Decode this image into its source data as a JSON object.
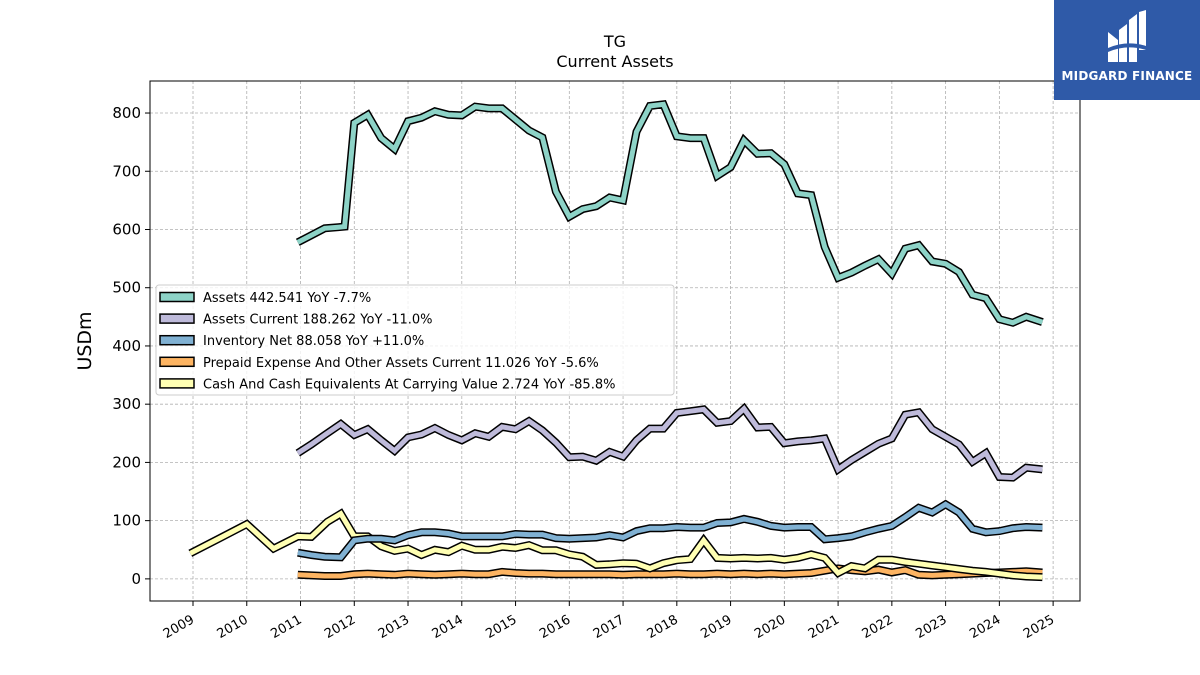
{
  "logo": {
    "brand": "MIDGARD FINANCE",
    "icon": "midgard-logo-mark",
    "color": "#2f5aa8"
  },
  "chart_data": {
    "type": "line",
    "title": "TG",
    "subtitle": "Current  Assets",
    "xlabel": "",
    "ylabel": "USDm",
    "xlim": [
      2008.2,
      2025.5
    ],
    "ylim": [
      -38,
      855
    ],
    "yticks": [
      0,
      100,
      200,
      300,
      400,
      500,
      600,
      700,
      800
    ],
    "xticks": [
      "2009",
      "2010",
      "2011",
      "2012",
      "2013",
      "2014",
      "2015",
      "2016",
      "2017",
      "2018",
      "2019",
      "2020",
      "2021",
      "2022",
      "2023",
      "2024",
      "2025"
    ],
    "grid": true,
    "legend_position": "center-left",
    "series": [
      {
        "name": "Assets  442.541 YoY -7.7%",
        "color": "#8dd3c7",
        "x": [
          2010.95,
          2011.2,
          2011.45,
          2011.7,
          2011.82,
          2012.0,
          2012.25,
          2012.5,
          2012.75,
          2013.0,
          2013.25,
          2013.5,
          2013.75,
          2014.0,
          2014.25,
          2014.5,
          2014.75,
          2015.0,
          2015.25,
          2015.5,
          2015.75,
          2016.0,
          2016.25,
          2016.5,
          2016.75,
          2017.0,
          2017.25,
          2017.5,
          2017.75,
          2018.0,
          2018.25,
          2018.5,
          2018.75,
          2019.0,
          2019.25,
          2019.5,
          2019.75,
          2020.0,
          2020.25,
          2020.5,
          2020.75,
          2021.0,
          2021.25,
          2021.5,
          2021.75,
          2022.0,
          2022.25,
          2022.5,
          2022.75,
          2023.0,
          2023.25,
          2023.5,
          2023.75,
          2024.0,
          2024.25,
          2024.5,
          2024.8
        ],
        "values": [
          578,
          590,
          602,
          604,
          605,
          783,
          797,
          757,
          738,
          786,
          792,
          803,
          797,
          796,
          811,
          808,
          808,
          789,
          770,
          758,
          665,
          622,
          635,
          640,
          655,
          650,
          768,
          812,
          815,
          760,
          757,
          757,
          692,
          707,
          753,
          730,
          731,
          712,
          662,
          659,
          570,
          517,
          526,
          538,
          549,
          524,
          567,
          573,
          545,
          541,
          527,
          488,
          482,
          446,
          440,
          450,
          441
        ]
      },
      {
        "name": "Assets Current  188.262 YoY -11.0%",
        "color": "#bebada",
        "x": [
          2010.95,
          2011.2,
          2011.45,
          2011.75,
          2012.0,
          2012.25,
          2012.5,
          2012.75,
          2013.0,
          2013.25,
          2013.5,
          2013.75,
          2014.0,
          2014.25,
          2014.5,
          2014.75,
          2015.0,
          2015.25,
          2015.5,
          2015.75,
          2016.0,
          2016.25,
          2016.5,
          2016.75,
          2017.0,
          2017.25,
          2017.5,
          2017.75,
          2018.0,
          2018.25,
          2018.5,
          2018.75,
          2019.0,
          2019.25,
          2019.5,
          2019.75,
          2020.0,
          2020.25,
          2020.5,
          2020.75,
          2021.0,
          2021.25,
          2021.5,
          2021.75,
          2022.0,
          2022.25,
          2022.5,
          2022.75,
          2023.0,
          2023.25,
          2023.5,
          2023.75,
          2024.0,
          2024.25,
          2024.5,
          2024.8
        ],
        "values": [
          216,
          231,
          247,
          266,
          247,
          257,
          238,
          220,
          243,
          248,
          259,
          247,
          238,
          250,
          244,
          261,
          257,
          271,
          255,
          234,
          209,
          210,
          203,
          218,
          210,
          238,
          258,
          258,
          285,
          288,
          291,
          268,
          271,
          292,
          260,
          261,
          233,
          236,
          238,
          241,
          188,
          204,
          218,
          232,
          241,
          282,
          286,
          257,
          244,
          231,
          201,
          216,
          175,
          174,
          191,
          188
        ]
      },
      {
        "name": "Inventory Net  88.058 YoY +11.0%",
        "color": "#80b1d3",
        "x": [
          2010.95,
          2011.2,
          2011.45,
          2011.75,
          2012.0,
          2012.25,
          2012.5,
          2012.75,
          2013.0,
          2013.25,
          2013.5,
          2013.75,
          2014.0,
          2014.25,
          2014.5,
          2014.75,
          2015.0,
          2015.25,
          2015.5,
          2015.75,
          2016.0,
          2016.25,
          2016.5,
          2016.75,
          2017.0,
          2017.25,
          2017.5,
          2017.75,
          2018.0,
          2018.25,
          2018.5,
          2018.75,
          2019.0,
          2019.25,
          2019.5,
          2019.75,
          2020.0,
          2020.25,
          2020.5,
          2020.75,
          2021.0,
          2021.25,
          2021.5,
          2021.75,
          2022.0,
          2022.25,
          2022.5,
          2022.75,
          2023.0,
          2023.25,
          2023.5,
          2023.75,
          2024.0,
          2024.25,
          2024.5,
          2024.8
        ],
        "values": [
          45,
          41,
          38,
          37,
          66,
          69,
          69,
          66,
          75,
          80,
          80,
          78,
          73,
          73,
          73,
          73,
          77,
          76,
          76,
          70,
          69,
          70,
          71,
          75,
          71,
          82,
          87,
          87,
          89,
          88,
          88,
          96,
          97,
          103,
          98,
          91,
          88,
          89,
          89,
          68,
          70,
          73,
          80,
          86,
          91,
          106,
          122,
          114,
          128,
          114,
          86,
          80,
          82,
          87,
          89,
          88
        ]
      },
      {
        "name": "Prepaid Expense And Other Assets Current  11.026 YoY -5.6%",
        "color": "#fdb462",
        "x": [
          2010.95,
          2011.2,
          2011.45,
          2011.75,
          2012.0,
          2012.25,
          2012.5,
          2012.75,
          2013.0,
          2013.25,
          2013.5,
          2013.75,
          2014.0,
          2014.25,
          2014.5,
          2014.75,
          2015.0,
          2015.25,
          2015.5,
          2015.75,
          2016.0,
          2016.25,
          2016.5,
          2016.75,
          2017.0,
          2017.25,
          2017.5,
          2017.75,
          2018.0,
          2018.25,
          2018.5,
          2018.75,
          2019.0,
          2019.25,
          2019.5,
          2019.75,
          2020.0,
          2020.25,
          2020.5,
          2020.75,
          2021.0,
          2021.25,
          2021.5,
          2021.75,
          2022.0,
          2022.25,
          2022.5,
          2022.75,
          2023.0,
          2023.25,
          2023.5,
          2023.75,
          2024.0,
          2024.25,
          2024.5,
          2024.8
        ],
        "values": [
          7,
          6,
          5,
          5,
          8,
          9,
          8,
          7,
          9,
          8,
          7,
          8,
          9,
          8,
          8,
          12,
          10,
          9,
          9,
          8,
          8,
          8,
          8,
          8,
          7,
          8,
          8,
          8,
          9,
          8,
          8,
          9,
          8,
          9,
          8,
          9,
          8,
          9,
          10,
          14,
          18,
          15,
          13,
          16,
          11,
          15,
          7,
          6,
          7,
          8,
          9,
          10,
          11,
          12,
          13,
          11
        ]
      },
      {
        "name": "Cash And Cash Equivalents At Carrying Value  2.724 YoY -85.8%",
        "color": "#ffffb3",
        "x": [
          2008.95,
          2009.5,
          2010.0,
          2010.5,
          2010.95,
          2011.2,
          2011.5,
          2011.75,
          2012.0,
          2012.25,
          2012.5,
          2012.75,
          2013.0,
          2013.25,
          2013.5,
          2013.75,
          2014.0,
          2014.25,
          2014.5,
          2014.75,
          2015.0,
          2015.25,
          2015.5,
          2015.75,
          2016.0,
          2016.25,
          2016.5,
          2016.75,
          2017.0,
          2017.25,
          2017.5,
          2017.75,
          2018.0,
          2018.25,
          2018.5,
          2018.75,
          2019.0,
          2019.25,
          2019.5,
          2019.75,
          2020.0,
          2020.25,
          2020.5,
          2020.75,
          2021.0,
          2021.25,
          2021.5,
          2021.75,
          2022.0,
          2022.25,
          2022.5,
          2022.75,
          2023.0,
          2023.25,
          2023.5,
          2023.75,
          2024.0,
          2024.25,
          2024.5,
          2024.8
        ],
        "values": [
          44,
          70,
          94,
          52,
          73,
          72,
          98,
          112,
          73,
          73,
          56,
          48,
          52,
          41,
          50,
          46,
          57,
          50,
          50,
          55,
          53,
          58,
          49,
          49,
          42,
          38,
          24,
          25,
          27,
          26,
          18,
          27,
          32,
          34,
          66,
          36,
          35,
          36,
          35,
          36,
          33,
          36,
          42,
          36,
          10,
          22,
          18,
          33,
          33,
          29,
          26,
          23,
          20,
          17,
          14,
          12,
          9,
          6,
          4,
          3
        ]
      }
    ]
  }
}
